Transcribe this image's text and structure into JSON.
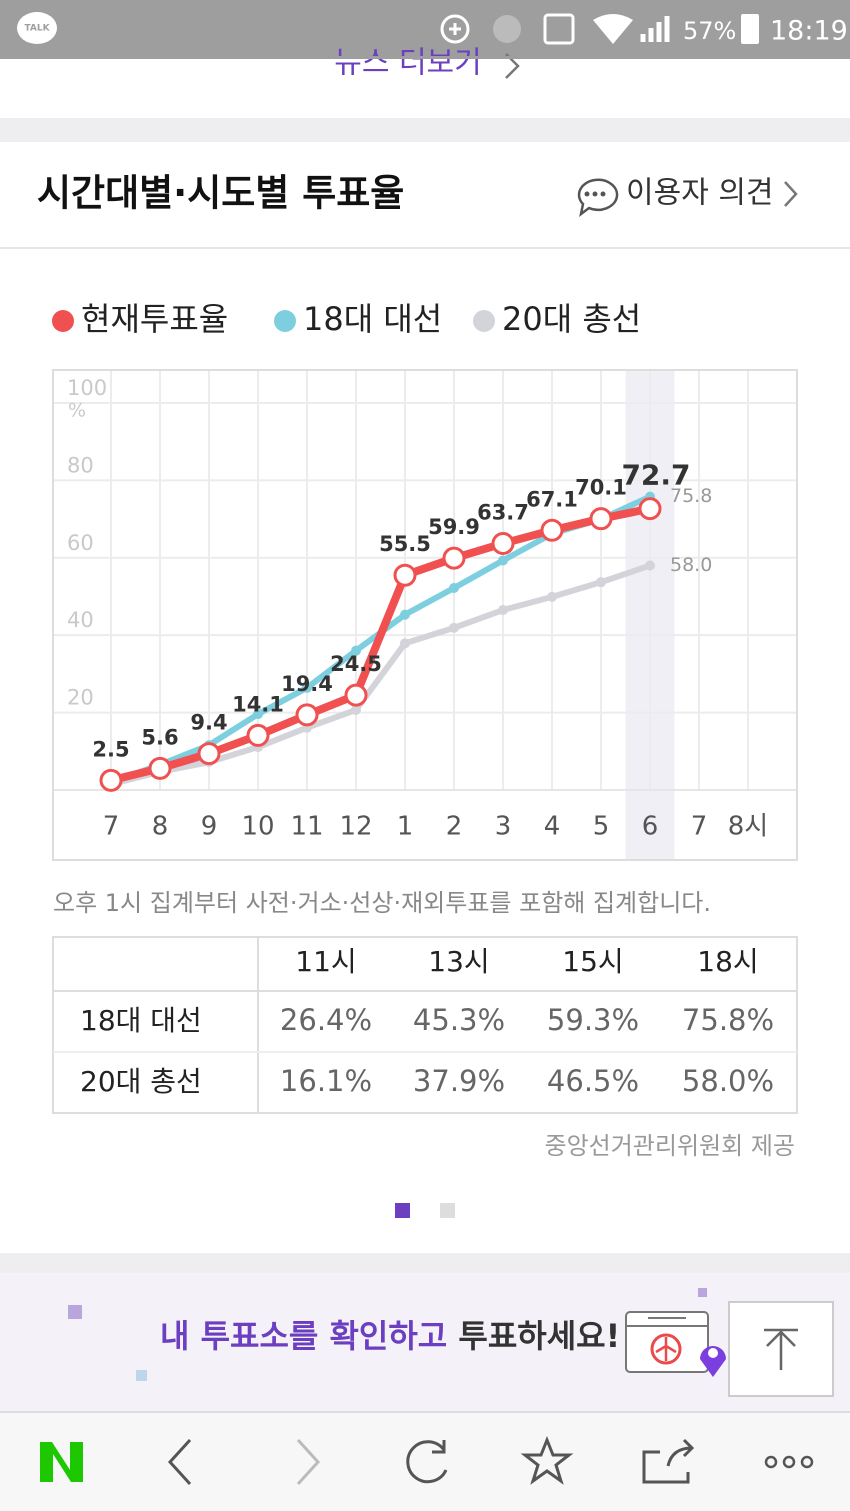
{
  "status_bar": {
    "app_icon": "TALK",
    "battery": "57%",
    "time": "18:19"
  },
  "top_link": "뉴스 더보기",
  "header": {
    "title": "시간대별·시도별 투표율",
    "feedback": "이용자 의견"
  },
  "chart_data": {
    "type": "line",
    "categories": [
      "7",
      "8",
      "9",
      "10",
      "11",
      "12",
      "1",
      "2",
      "3",
      "4",
      "5",
      "6",
      "7",
      "8시"
    ],
    "series": [
      {
        "name": "현재투표율",
        "color": "#f0504f",
        "marker": "circle",
        "show_values": true,
        "values": [
          2.5,
          5.6,
          9.4,
          14.1,
          19.4,
          24.5,
          55.5,
          59.9,
          63.7,
          67.1,
          70.1,
          72.7,
          null,
          null
        ]
      },
      {
        "name": "18대 대선",
        "color": "#7dcfdf",
        "marker": "dot",
        "values": [
          2.0,
          6.5,
          11.6,
          19.6,
          26.4,
          36.0,
          45.3,
          52.2,
          59.3,
          66.2,
          70.0,
          75.8,
          null,
          null
        ],
        "value_labels": [
          null,
          null,
          null,
          null,
          null,
          null,
          null,
          null,
          null,
          null,
          null,
          "75.8",
          null,
          null
        ]
      },
      {
        "name": "20대 총선",
        "color": "#d3d3da",
        "marker": "dot",
        "values": [
          1.5,
          4.7,
          7.2,
          11.1,
          16.1,
          20.7,
          37.9,
          41.9,
          46.5,
          49.9,
          53.7,
          58.0,
          null,
          null
        ],
        "value_labels": [
          null,
          null,
          null,
          null,
          null,
          null,
          null,
          null,
          null,
          null,
          null,
          "58.0",
          null,
          null
        ]
      }
    ],
    "ylim": [
      0,
      108
    ],
    "yticks": [
      20,
      40,
      60,
      80,
      100
    ],
    "y_unit": "%",
    "grid": true,
    "highlight_index": 11,
    "legend": "top-left"
  },
  "note": "오후 1시 집계부터 사전·거소·선상·재외투표를 포함해 집계합니다.",
  "table": {
    "columns": [
      "11시",
      "13시",
      "15시",
      "18시"
    ],
    "rows": [
      {
        "label": "18대 대선",
        "cells": [
          "26.4%",
          "45.3%",
          "59.3%",
          "75.8%"
        ]
      },
      {
        "label": "20대 총선",
        "cells": [
          "16.1%",
          "37.9%",
          "46.5%",
          "58.0%"
        ]
      }
    ]
  },
  "source": "중앙선거관리위원회 제공",
  "banner": {
    "highlight": "내 투표소를 확인하고",
    "text": "투표하세요!"
  }
}
